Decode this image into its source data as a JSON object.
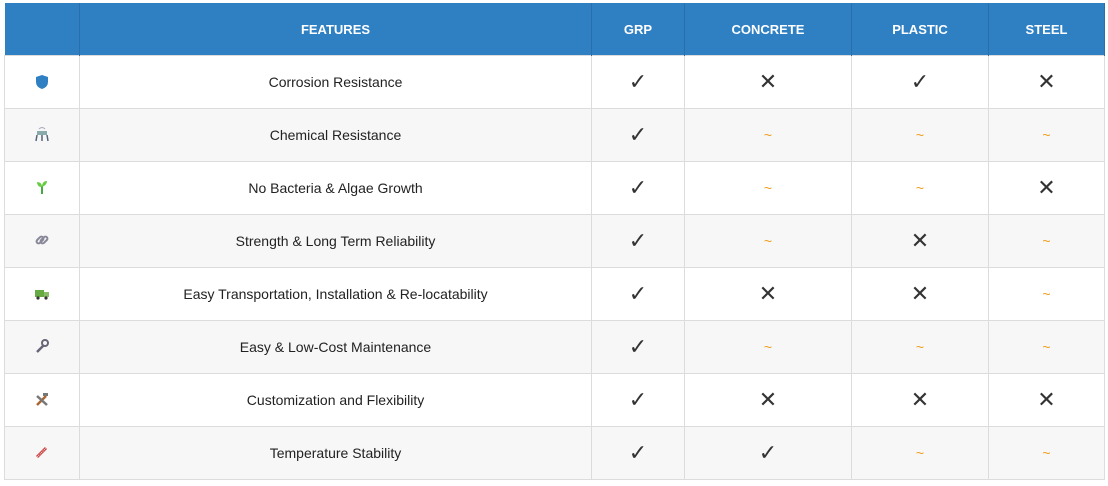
{
  "table": {
    "columns": [
      "FEATURES",
      "GRP",
      "CONCRETE",
      "PLASTIC",
      "STEEL"
    ],
    "rows": [
      {
        "feature": "Corrosion Resistance",
        "values": [
          "✓",
          "✕",
          "✓",
          "✕"
        ]
      },
      {
        "feature": "Chemical Resistance",
        "values": [
          "✓",
          "~",
          "~",
          "~"
        ]
      },
      {
        "feature": "No Bacteria & Algae Growth",
        "values": [
          "✓",
          "~",
          "~",
          "✕"
        ]
      },
      {
        "feature": "Strength & Long Term Reliability",
        "values": [
          "✓",
          "~",
          "✕",
          "~"
        ]
      },
      {
        "feature": "Easy Transportation, Installation & Re-locatability",
        "values": [
          "✓",
          "✕",
          "✕",
          "~"
        ]
      },
      {
        "feature": "Easy & Low-Cost Maintenance",
        "values": [
          "✓",
          "~",
          "~",
          "~"
        ]
      },
      {
        "feature": "Customization and Flexibility",
        "values": [
          "✓",
          "✕",
          "✕",
          "✕"
        ]
      },
      {
        "feature": "Temperature Stability",
        "values": [
          "✓",
          "✓",
          "~",
          "~"
        ]
      }
    ]
  }
}
